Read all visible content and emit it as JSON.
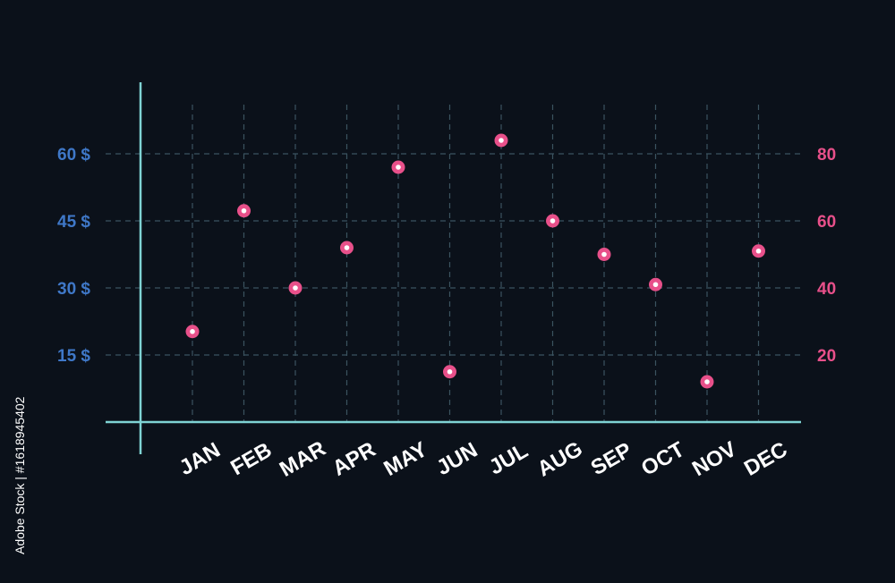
{
  "chart_data": {
    "type": "scatter",
    "categories": [
      "JAN",
      "FEB",
      "MAR",
      "APR",
      "MAY",
      "JUN",
      "JUL",
      "AUG",
      "SEP",
      "OCT",
      "NOV",
      "DEC"
    ],
    "values": [
      27,
      63,
      40,
      52,
      76,
      15,
      84,
      60,
      50,
      41,
      12,
      51
    ],
    "left_axis": {
      "ticks": [
        "15 $",
        "30 $",
        "45 $",
        "60 $"
      ],
      "tick_values": [
        20,
        40,
        60,
        80
      ]
    },
    "right_axis": {
      "ticks": [
        "20",
        "40",
        "60",
        "80"
      ],
      "tick_values": [
        20,
        40,
        60,
        80
      ]
    },
    "ylim": [
      0,
      100
    ],
    "grid": true,
    "colors": {
      "axis": "#7fd3d4",
      "grid": "#3b5360",
      "marker": "#e8508a",
      "marker_center": "#ffffff",
      "left_tick": "#3f78c8",
      "right_tick": "#e8508a",
      "label": "#ffffff"
    }
  },
  "side_text": "Adobe Stock | #1618945402"
}
